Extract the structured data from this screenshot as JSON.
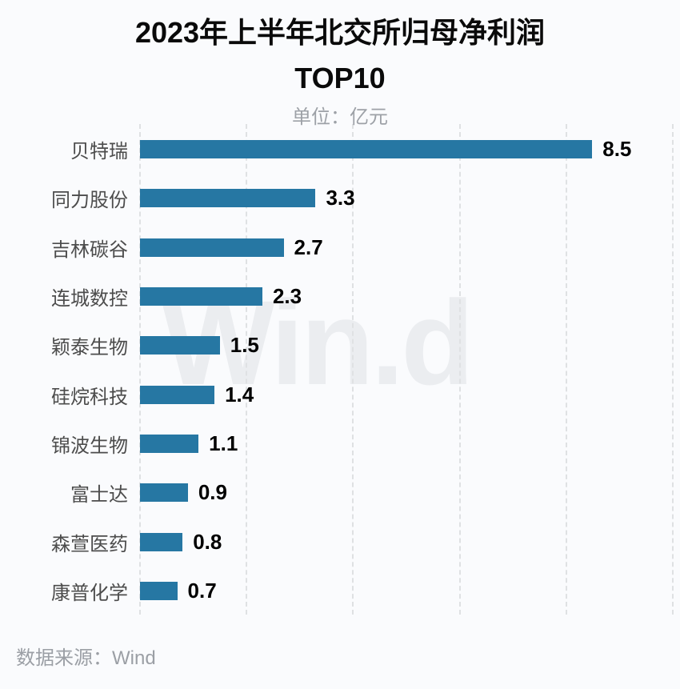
{
  "page": {
    "background": "#fafbfd"
  },
  "header": {
    "title_line1": "2023年上半年北交所归母净利润",
    "title_line2": "TOP10",
    "subtitle": "单位：亿元"
  },
  "watermark": {
    "text": "Win.d",
    "color": "#ebedf0"
  },
  "footer": {
    "source": "数据来源：Wind"
  },
  "chart_data": {
    "type": "bar",
    "orientation": "horizontal",
    "title": "2023年上半年北交所归母净利润 TOP10",
    "unit_label": "单位：亿元",
    "categories": [
      "贝特瑞",
      "同力股份",
      "吉林碳谷",
      "连城数控",
      "颖泰生物",
      "硅烷科技",
      "锦波生物",
      "富士达",
      "森萱医药",
      "康普化学"
    ],
    "values": [
      8.5,
      3.3,
      2.7,
      2.3,
      1.5,
      1.4,
      1.1,
      0.9,
      0.8,
      0.7
    ],
    "value_labels": [
      "8.5",
      "3.3",
      "2.7",
      "2.3",
      "1.5",
      "1.4",
      "1.1",
      "0.9",
      "0.8",
      "0.7"
    ],
    "xlabel": "",
    "ylabel": "",
    "xlim": [
      0,
      10
    ],
    "grid": {
      "axis": "x",
      "interval": 2,
      "line_style": "dashed",
      "line_color": "#dfe1e3",
      "count": 6
    },
    "legend": "none",
    "bar_color": "#2677a3",
    "category_label_color": "#4c4c4c",
    "value_label_color": "#000000",
    "source": "数据来源：Wind",
    "watermark": "Win.d"
  }
}
